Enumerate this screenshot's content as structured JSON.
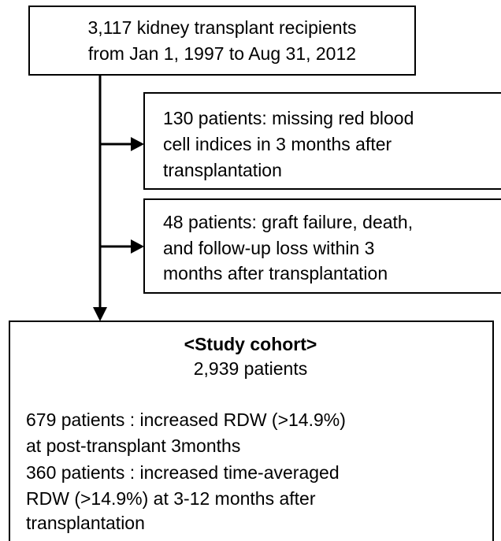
{
  "nodes": [
    {
      "lines": [
        "3,117 kidney transplant recipients",
        "from Jan 1, 1997 to Aug 31, 2012"
      ]
    },
    {
      "lines": [
        "130 patients: missing red blood",
        "cell indices in 3 months after",
        "transplantation"
      ]
    },
    {
      "lines": [
        "48 patients: graft failure, death,",
        "and follow-up loss within 3",
        "months after transplantation"
      ]
    },
    {
      "title": "<Study cohort>",
      "subtitle": "2,939 patients",
      "lines": [
        "679 patients : increased RDW (>14.9%)",
        "at post-transplant 3months",
        "360 patients : increased time-averaged",
        "RDW (>14.9%) at 3-12 months after",
        "transplantation"
      ]
    }
  ]
}
